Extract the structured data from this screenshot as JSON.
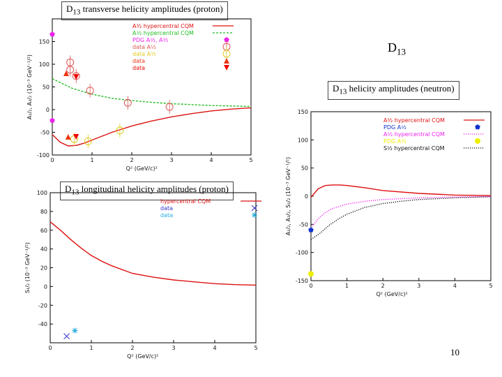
{
  "slide": {
    "caption_top": {
      "pre": "D",
      "sub": "13",
      "post": " transverse helicity amplitudes  (proton)"
    },
    "caption_neutron": {
      "pre": "D",
      "sub": "13",
      "post": " helicity amplitudes  (neutron)"
    },
    "caption_long": {
      "pre": "D",
      "sub": "13",
      "post": " longitudinal  helicity amplitudes  (proton)"
    },
    "title_d13": {
      "pre": "D",
      "sub": "13"
    },
    "page_number": "10"
  },
  "chart_data": [
    {
      "id": "proton-transverse",
      "type": "line",
      "xlim": [
        0,
        5
      ],
      "ylim": [
        -100,
        200
      ],
      "xticks": [
        "0",
        "1",
        "2",
        "3",
        "4",
        "5"
      ],
      "yticks": [
        "-100",
        "-50",
        "0",
        "50",
        "100",
        "150"
      ],
      "xlabel": "Q² (GeV/c)²",
      "ylabel": "A₁/₂, A₃/₂ (10⁻³ GeV⁻¹/²)",
      "legend_position": "top-right",
      "series": [
        {
          "name": "A³⁄₂ hypercentral CQM",
          "style": "solid",
          "color": "#dd1111",
          "x": [
            0,
            0.2,
            0.4,
            0.6,
            0.8,
            1.0,
            1.5,
            2.0,
            2.5,
            3.0,
            3.5,
            4.0,
            4.5,
            5.0
          ],
          "y": [
            -55,
            -72,
            -80,
            -79,
            -74,
            -67,
            -50,
            -36,
            -25,
            -16,
            -9,
            -3,
            1,
            4
          ]
        },
        {
          "name": "A¹⁄₂ hypercentral CQM",
          "style": "dashed",
          "color": "#22bb22",
          "x": [
            0,
            0.5,
            1.0,
            1.5,
            2.0,
            2.5,
            3.0,
            3.5,
            4.0,
            4.5,
            5.0
          ],
          "y": [
            68,
            47,
            34,
            25,
            20,
            16,
            13,
            11,
            9,
            8,
            7
          ]
        }
      ],
      "markers": [
        {
          "name": "PDG A¹⁄₂, A³⁄₂",
          "shape": "pentagon",
          "color": "#ee22ee",
          "points": [
            [
              0,
              166
            ],
            [
              0,
              -24
            ]
          ]
        },
        {
          "name": "data A¹⁄₂",
          "shape": "open-circle",
          "color": "#dd5555",
          "points": [
            [
              0.45,
              104
            ],
            [
              0.45,
              88
            ],
            [
              0.6,
              74
            ],
            [
              0.95,
              42
            ],
            [
              1.9,
              15
            ],
            [
              2.95,
              6
            ]
          ]
        },
        {
          "name": "data A³⁄₂",
          "shape": "open-circle",
          "color": "#ddcc22",
          "points": [
            [
              0.55,
              -65
            ],
            [
              0.9,
              -70
            ],
            [
              1.7,
              -46
            ]
          ]
        },
        {
          "name": "data",
          "shape": "triangle-up",
          "color": "#ee3311",
          "points": [
            [
              0.35,
              80
            ],
            [
              0.4,
              -60
            ]
          ]
        },
        {
          "name": "data",
          "shape": "triangle-down",
          "color": "#ee0000",
          "points": [
            [
              0.6,
              72
            ],
            [
              0.6,
              -60
            ]
          ]
        }
      ]
    },
    {
      "id": "proton-longitudinal",
      "type": "line",
      "xlim": [
        0,
        5
      ],
      "ylim": [
        -60,
        100
      ],
      "xticks": [
        "0",
        "1",
        "2",
        "3",
        "4",
        "5"
      ],
      "yticks": [
        "-40",
        "-20",
        "0",
        "20",
        "40",
        "60",
        "80",
        "100"
      ],
      "xlabel": "Q² (GeV/c)²",
      "ylabel": "S₁/₂ (10⁻³ GeV⁻¹/²)",
      "legend_position": "top-right",
      "series": [
        {
          "name": "hypercentral CQM",
          "style": "solid",
          "color": "#dd1111",
          "x": [
            0,
            0.25,
            0.5,
            0.75,
            1.0,
            1.25,
            1.5,
            2.0,
            2.5,
            3.0,
            3.5,
            4.0,
            4.5,
            5.0
          ],
          "y": [
            69,
            60,
            50,
            41,
            33,
            27,
            22,
            14,
            10,
            7,
            5,
            3,
            2,
            1.5
          ]
        }
      ],
      "markers": [
        {
          "name": "data",
          "shape": "x-mark",
          "color": "#3333cc",
          "points": [
            [
              0.4,
              -53
            ]
          ]
        },
        {
          "name": "data",
          "shape": "asterisk",
          "color": "#22aadd",
          "points": [
            [
              0.6,
              -47
            ]
          ]
        }
      ]
    },
    {
      "id": "neutron",
      "type": "line",
      "xlim": [
        0,
        5
      ],
      "ylim": [
        -150,
        150
      ],
      "xticks": [
        "0",
        "1",
        "2",
        "3",
        "4",
        "5"
      ],
      "yticks": [
        "-150",
        "-100",
        "-50",
        "0",
        "50",
        "100",
        "150"
      ],
      "xlabel": "Q² (GeV/c)²",
      "ylabel": "A₁/₂, A₃/₂, S₁/₂ (10⁻³ GeV⁻¹/²)",
      "legend_position": "top-right",
      "series": [
        {
          "name": "A³⁄₂ hypercentral CQM",
          "style": "solid",
          "color": "#dd1111",
          "x": [
            0,
            0.2,
            0.4,
            0.6,
            0.8,
            1.0,
            1.5,
            2.0,
            3.0,
            4.0,
            5.0
          ],
          "y": [
            -2,
            13,
            19,
            20,
            20,
            19,
            15,
            10,
            5,
            2,
            1
          ]
        },
        {
          "name": "A¹⁄₂ hypercentral CQM",
          "style": "dotted",
          "color": "#ee22ee",
          "x": [
            0,
            0.2,
            0.4,
            0.6,
            1.0,
            1.5,
            2.0,
            3.0,
            4.0,
            5.0
          ],
          "y": [
            -57,
            -40,
            -29,
            -22,
            -14,
            -9,
            -6,
            -3,
            -1.5,
            -0.5
          ]
        },
        {
          "name": "S¹⁄₂ hypercentral CQM",
          "style": "dotted",
          "color": "#111111",
          "x": [
            0,
            0.25,
            0.5,
            0.75,
            1.0,
            1.5,
            2.0,
            2.5,
            3.0,
            4.0,
            5.0
          ],
          "y": [
            -77,
            -66,
            -52,
            -41,
            -32,
            -20,
            -13,
            -9,
            -6,
            -3,
            -1
          ]
        }
      ],
      "markers": [
        {
          "name": "PDG A¹⁄₂",
          "shape": "pentagon",
          "color": "#1133cc",
          "points": [
            [
              0,
              -60
            ]
          ]
        },
        {
          "name": "PDG A³⁄₂",
          "shape": "circle",
          "color": "#eeee00",
          "points": [
            [
              0,
              -138
            ]
          ]
        }
      ],
      "legend_markers": [
        {
          "row": 1,
          "shape": "pentagon",
          "color": "#1133cc"
        },
        {
          "row": 3,
          "shape": "circle",
          "color": "#eeee00"
        }
      ]
    }
  ]
}
